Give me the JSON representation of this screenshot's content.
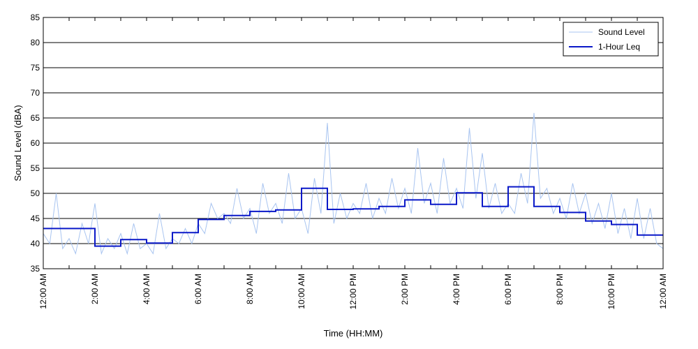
{
  "chart_data": {
    "type": "line",
    "xlabel": "Time (HH:MM)",
    "ylabel": "Sound Level (dBA)",
    "ylim": [
      35,
      85
    ],
    "yticks": [
      35,
      40,
      45,
      50,
      55,
      60,
      65,
      70,
      75,
      80,
      85
    ],
    "xlim": [
      0,
      24
    ],
    "xticks": [
      {
        "hour": 0,
        "label": "12:00 AM"
      },
      {
        "hour": 2,
        "label": "2:00 AM"
      },
      {
        "hour": 4,
        "label": "4:00 AM"
      },
      {
        "hour": 6,
        "label": "6:00 AM"
      },
      {
        "hour": 8,
        "label": "8:00 AM"
      },
      {
        "hour": 10,
        "label": "10:00 AM"
      },
      {
        "hour": 12,
        "label": "12:00 PM"
      },
      {
        "hour": 14,
        "label": "2:00 PM"
      },
      {
        "hour": 16,
        "label": "4:00 PM"
      },
      {
        "hour": 18,
        "label": "6:00 PM"
      },
      {
        "hour": 20,
        "label": "8:00 PM"
      },
      {
        "hour": 22,
        "label": "10:00 PM"
      },
      {
        "hour": 24,
        "label": "12:00 AM"
      }
    ],
    "grid": "horizontal",
    "legend_position": "top-right",
    "series": [
      {
        "name": "Sound Level",
        "style": "thin-line",
        "color": "#a8c4f0",
        "x": [
          0.0,
          0.25,
          0.5,
          0.75,
          1.0,
          1.25,
          1.5,
          1.75,
          2.0,
          2.25,
          2.5,
          2.75,
          3.0,
          3.25,
          3.5,
          3.75,
          4.0,
          4.25,
          4.5,
          4.75,
          5.0,
          5.25,
          5.5,
          5.75,
          6.0,
          6.25,
          6.5,
          6.75,
          7.0,
          7.25,
          7.5,
          7.75,
          8.0,
          8.25,
          8.5,
          8.75,
          9.0,
          9.25,
          9.5,
          9.75,
          10.0,
          10.25,
          10.5,
          10.75,
          11.0,
          11.25,
          11.5,
          11.75,
          12.0,
          12.25,
          12.5,
          12.75,
          13.0,
          13.25,
          13.5,
          13.75,
          14.0,
          14.25,
          14.5,
          14.75,
          15.0,
          15.25,
          15.5,
          15.75,
          16.0,
          16.25,
          16.5,
          16.75,
          17.0,
          17.25,
          17.5,
          17.75,
          18.0,
          18.25,
          18.5,
          18.75,
          19.0,
          19.25,
          19.5,
          19.75,
          20.0,
          20.25,
          20.5,
          20.75,
          21.0,
          21.25,
          21.5,
          21.75,
          22.0,
          22.25,
          22.5,
          22.75,
          23.0,
          23.25,
          23.5,
          23.75,
          24.0
        ],
        "values": [
          42,
          40,
          50,
          39,
          41,
          38,
          44,
          40,
          48,
          38,
          41,
          39,
          42,
          38,
          44,
          39,
          40,
          38,
          46,
          39,
          41,
          40,
          43,
          40,
          44,
          42,
          48,
          45,
          46,
          44,
          51,
          45,
          47,
          42,
          52,
          46,
          48,
          44,
          54,
          45,
          47,
          42,
          53,
          46,
          64,
          44,
          50,
          45,
          48,
          46,
          52,
          45,
          49,
          46,
          53,
          47,
          51,
          46,
          59,
          48,
          52,
          46,
          57,
          48,
          51,
          47,
          63,
          49,
          58,
          47,
          52,
          46,
          48,
          46,
          54,
          48,
          66,
          49,
          51,
          46,
          49,
          45,
          52,
          46,
          50,
          44,
          48,
          43,
          50,
          42,
          47,
          41,
          49,
          41,
          47,
          40,
          39
        ]
      },
      {
        "name": "1-Hour Leq",
        "style": "step",
        "color": "#0a18c8",
        "hours": [
          0,
          1,
          2,
          3,
          4,
          5,
          6,
          7,
          8,
          9,
          10,
          11,
          12,
          13,
          14,
          15,
          16,
          17,
          18,
          19,
          20,
          21,
          22,
          23
        ],
        "values": [
          43.0,
          43.0,
          39.5,
          40.8,
          40.1,
          42.2,
          44.8,
          45.6,
          46.4,
          46.7,
          51.0,
          46.8,
          46.9,
          47.4,
          48.7,
          47.8,
          50.1,
          47.4,
          51.3,
          47.4,
          46.2,
          44.5,
          43.8,
          41.7
        ]
      }
    ]
  }
}
